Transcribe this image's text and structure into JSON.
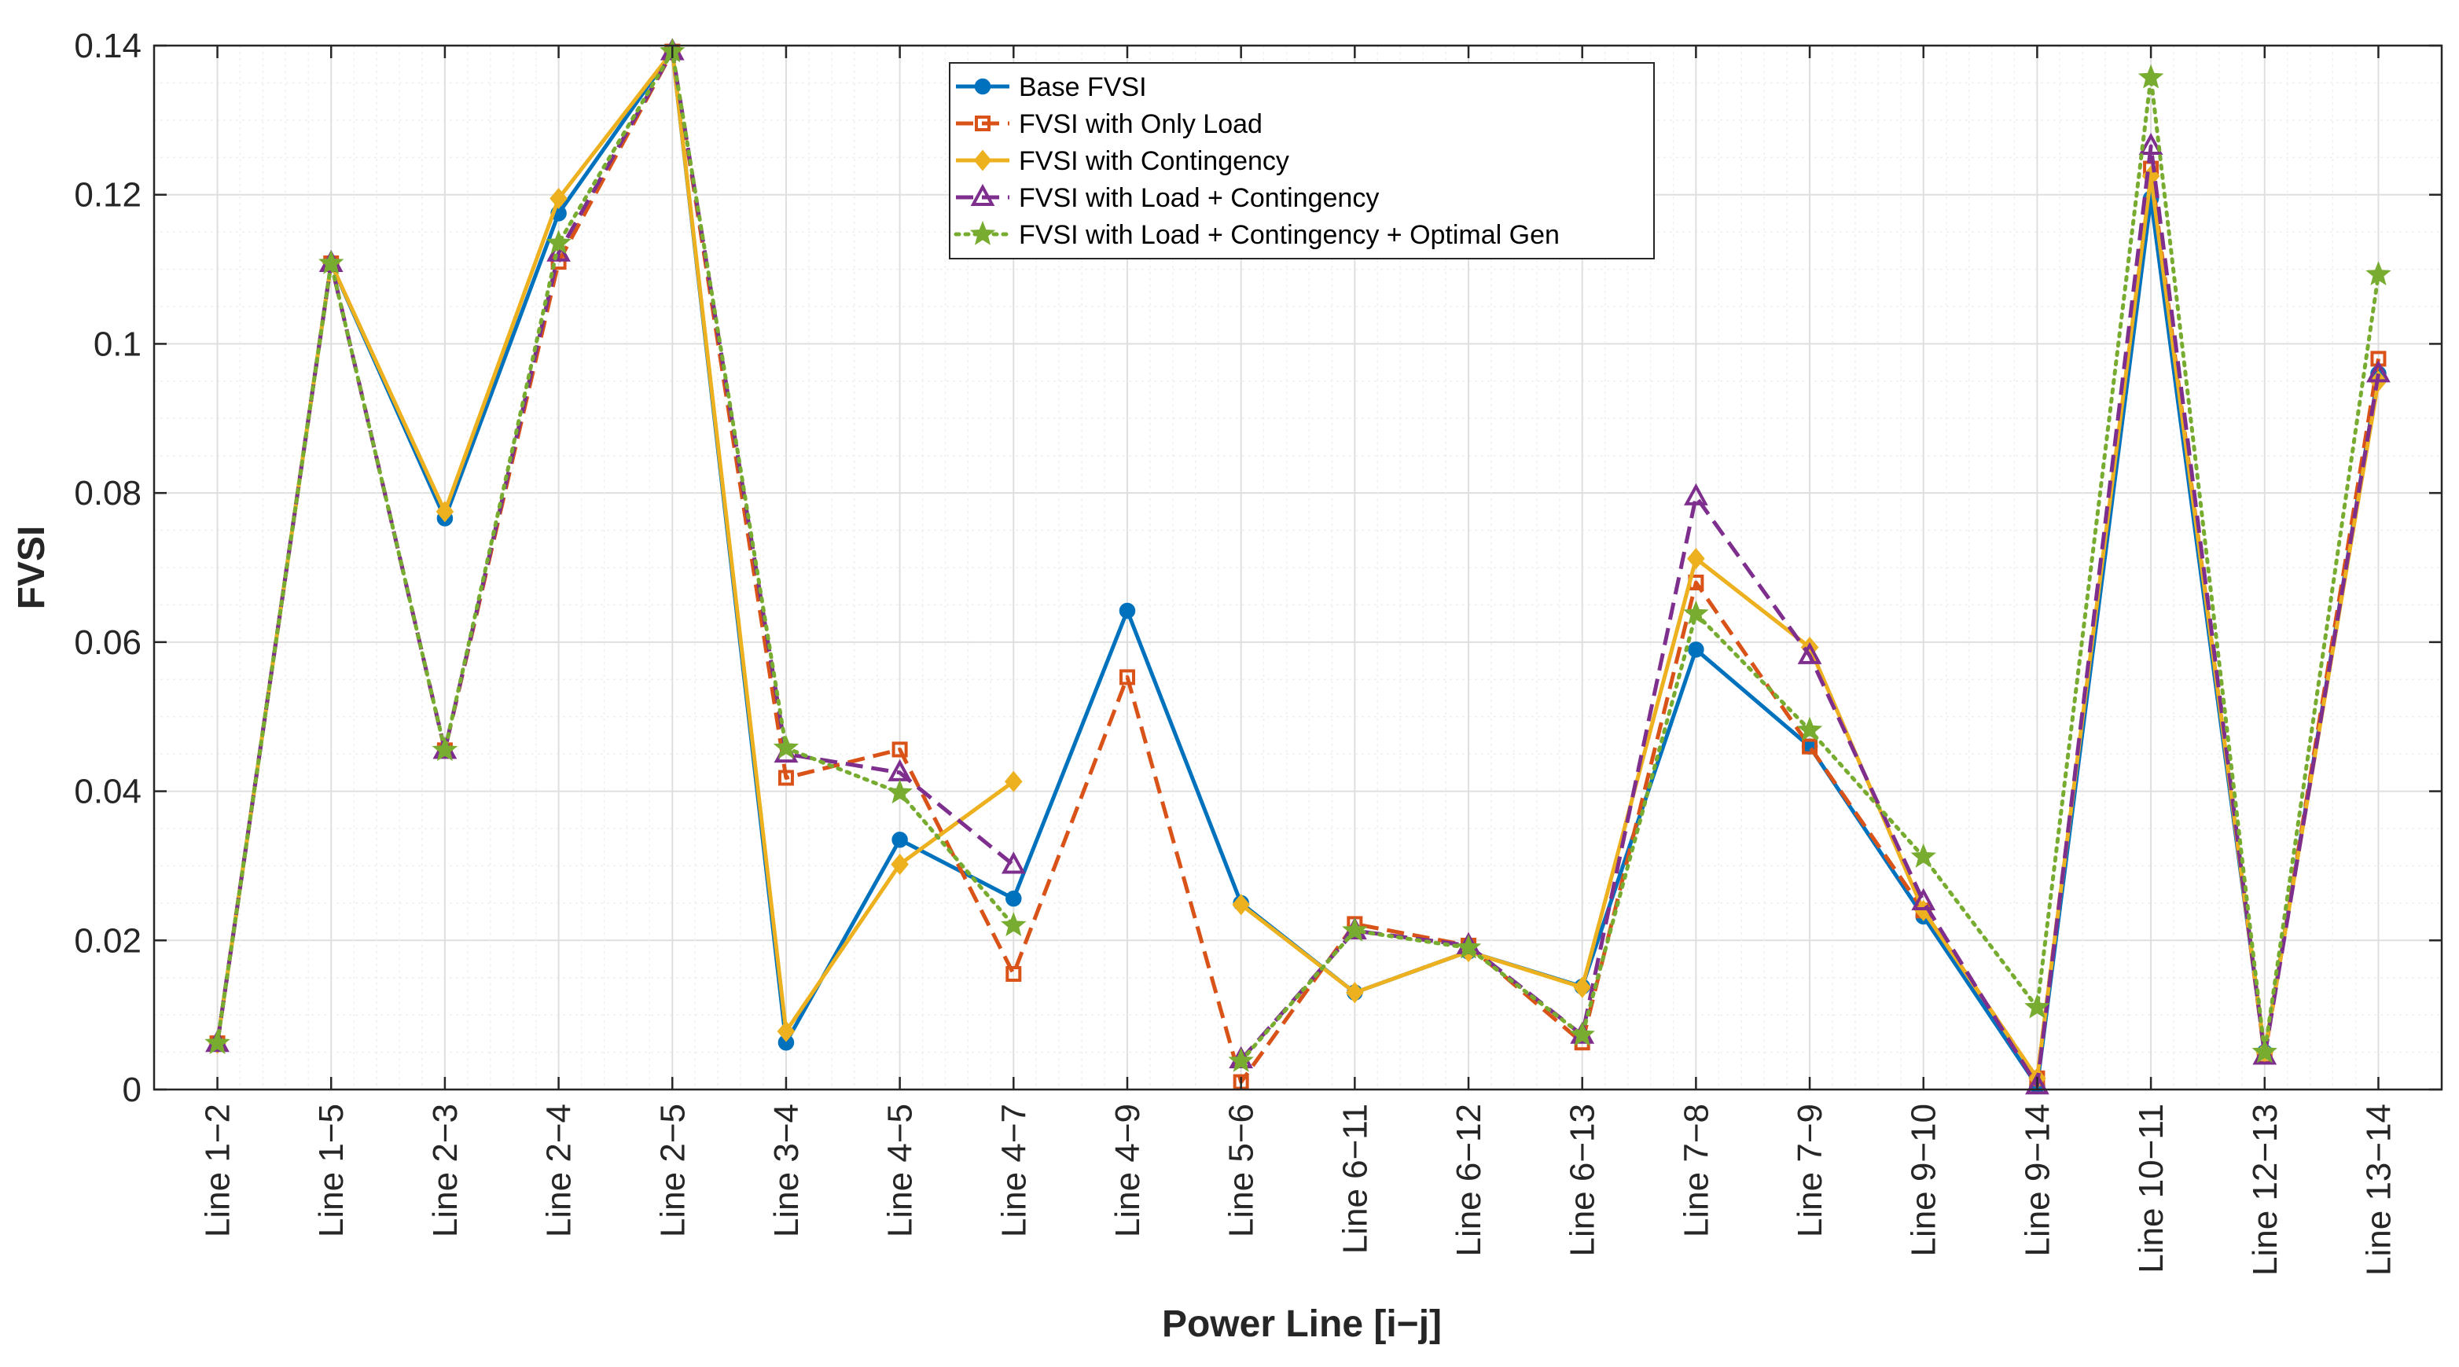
{
  "chart_data": {
    "type": "line",
    "title": "",
    "xlabel": "Power Line [i−j]",
    "ylabel": "FVSI",
    "ylim": [
      0,
      0.14
    ],
    "yticks": [
      0,
      0.02,
      0.04,
      0.06,
      0.08,
      0.1,
      0.12,
      0.14
    ],
    "ytick_labels": [
      "0",
      "0.02",
      "0.04",
      "0.06",
      "0.08",
      "0.1",
      "0.12",
      "0.14"
    ],
    "grid": true,
    "legend_position": "top-center",
    "categories": [
      "Line 1−2",
      "Line 1−5",
      "Line 2−3",
      "Line 2−4",
      "Line 2−5",
      "Line 3−4",
      "Line 4−5",
      "Line 4−7",
      "Line 4−9",
      "Line 5−6",
      "Line 6−11",
      "Line 6−12",
      "Line 6−13",
      "Line 7−8",
      "Line 7−9",
      "Line 9−10",
      "Line 9−14",
      "Line 10−11",
      "Line 12−13",
      "Line 13−14"
    ],
    "series": [
      {
        "name": "Base FVSI",
        "color": "#0072BD",
        "dash": "solid",
        "marker": "circle",
        "values": [
          0.0062,
          0.1108,
          0.0766,
          0.1175,
          0.1392,
          0.0063,
          0.0335,
          0.0256,
          0.0642,
          0.025,
          0.013,
          0.0185,
          0.0138,
          0.059,
          0.046,
          0.0232,
          0.0005,
          0.1195,
          0.005,
          0.096
        ]
      },
      {
        "name": "FVSI with Only Load",
        "color": "#D95319",
        "dash": "dashed",
        "marker": "square",
        "values": [
          0.0062,
          0.1108,
          0.0455,
          0.111,
          0.1392,
          0.0418,
          0.0456,
          0.0155,
          0.0553,
          0.001,
          0.0222,
          0.0193,
          0.0063,
          0.068,
          0.046,
          0.024,
          0.0015,
          0.1235,
          0.0045,
          0.098
        ]
      },
      {
        "name": "FVSI with Contingency",
        "color": "#EDB120",
        "dash": "solid",
        "marker": "diamond",
        "values": [
          0.0062,
          0.1108,
          0.0775,
          0.1195,
          0.1392,
          0.0078,
          0.0302,
          0.0413,
          null,
          0.0248,
          0.013,
          0.0185,
          0.0137,
          0.0712,
          0.0593,
          0.024,
          0.0015,
          0.1225,
          0.005,
          0.095
        ]
      },
      {
        "name": "FVSI with Load + Contingency",
        "color": "#7E2F8E",
        "dash": "dashed",
        "marker": "triangle",
        "values": [
          0.0062,
          0.1108,
          0.0455,
          0.1122,
          0.1392,
          0.045,
          0.0425,
          0.0301,
          null,
          0.004,
          0.0213,
          0.0193,
          0.0073,
          0.0795,
          0.0582,
          0.0252,
          0.0005,
          0.1265,
          0.0045,
          0.096
        ]
      },
      {
        "name": "FVSI with Load + Contingency + Optimal Gen",
        "color": "#77AC30",
        "dash": "dotted",
        "marker": "star",
        "values": [
          0.0062,
          0.1108,
          0.0455,
          0.1135,
          0.1392,
          0.0458,
          0.0398,
          0.022,
          null,
          0.0038,
          0.0213,
          0.019,
          0.0073,
          0.0638,
          0.0482,
          0.0312,
          0.011,
          0.1357,
          0.005,
          0.1093
        ]
      }
    ]
  }
}
